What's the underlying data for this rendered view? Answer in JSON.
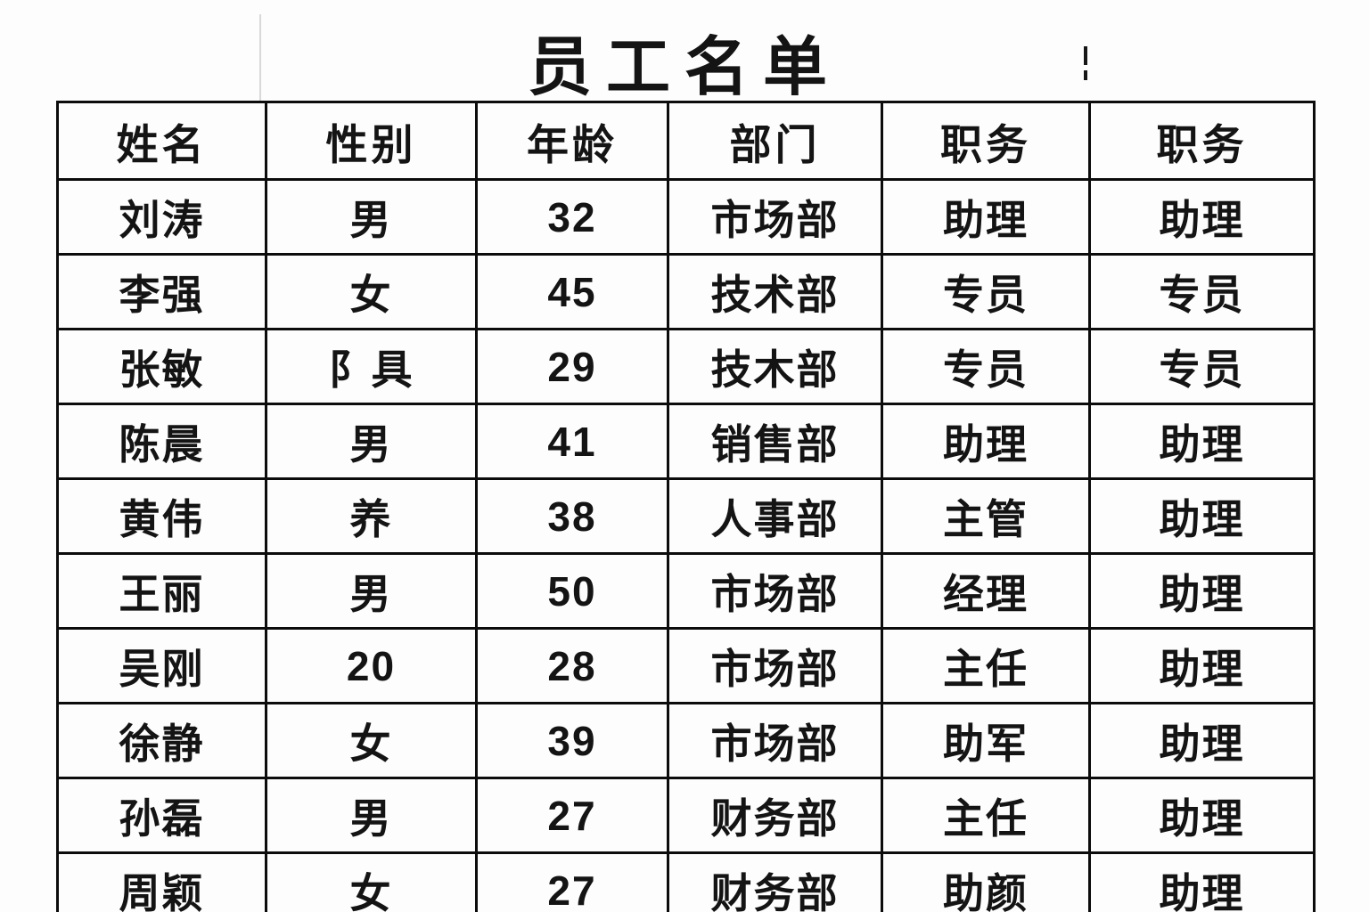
{
  "title": "员工名单",
  "colors": {
    "background": "#fdfdfd",
    "border": "#0c0c0c",
    "text": "#141414",
    "faint_line": "#d9d9d9"
  },
  "table": {
    "headers": [
      "姓名",
      "性别",
      "年龄",
      "部门",
      "职务",
      "职务"
    ],
    "rows": [
      [
        "刘涛",
        "男",
        "32",
        "市场部",
        "助理",
        "助理"
      ],
      [
        "李强",
        "女",
        "45",
        "技术部",
        "专员",
        "专员"
      ],
      [
        "张敏",
        "阝具",
        "29",
        "技木部",
        "专员",
        "专员"
      ],
      [
        "陈晨",
        "男",
        "41",
        "销售部",
        "助理",
        "助理"
      ],
      [
        "黄伟",
        "养",
        "38",
        "人事部",
        "主管",
        "助理"
      ],
      [
        "王丽",
        "男",
        "50",
        "市场部",
        "经理",
        "助理"
      ],
      [
        "吴刚",
        "20",
        "28",
        "市场部",
        "主任",
        "助理"
      ],
      [
        "徐静",
        "女",
        "39",
        "市场部",
        "助军",
        "助理"
      ],
      [
        "孙磊",
        "男",
        "27",
        "财务部",
        "主任",
        "助理"
      ],
      [
        "周颖",
        "女",
        "27",
        "财务部",
        "助颜",
        "助理"
      ]
    ]
  }
}
